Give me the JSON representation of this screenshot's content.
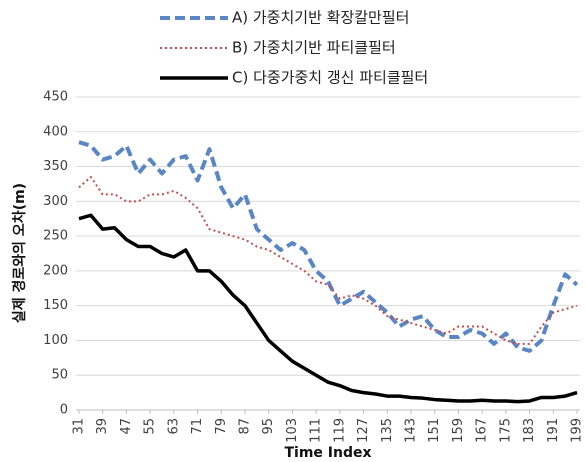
{
  "chart_data": {
    "type": "line",
    "xlabel": "Time Index",
    "ylabel": "실제 경로와의 오차(m)",
    "x": [
      31,
      35,
      39,
      43,
      47,
      51,
      55,
      59,
      63,
      67,
      71,
      75,
      79,
      83,
      87,
      91,
      95,
      99,
      103,
      107,
      111,
      115,
      119,
      123,
      127,
      131,
      135,
      139,
      143,
      147,
      151,
      155,
      159,
      163,
      167,
      171,
      175,
      179,
      183,
      187,
      191,
      195,
      199
    ],
    "series": [
      {
        "name": "A) 가중치기반 확장칼만필터",
        "color": "#5b86c5",
        "dash": "dashed",
        "values": [
          385,
          380,
          360,
          365,
          380,
          340,
          360,
          340,
          360,
          365,
          330,
          375,
          320,
          290,
          310,
          260,
          245,
          230,
          240,
          230,
          200,
          185,
          150,
          160,
          170,
          155,
          140,
          120,
          130,
          135,
          115,
          105,
          105,
          115,
          110,
          95,
          110,
          90,
          85,
          100,
          150,
          195,
          180
        ]
      },
      {
        "name": "B) 가중치기반 파티클필터",
        "color": "#c0504d",
        "dash": "dotted",
        "values": [
          320,
          335,
          310,
          310,
          300,
          300,
          310,
          310,
          315,
          305,
          290,
          260,
          255,
          250,
          245,
          235,
          230,
          220,
          210,
          200,
          185,
          180,
          160,
          165,
          160,
          150,
          135,
          130,
          125,
          120,
          115,
          110,
          120,
          120,
          120,
          110,
          100,
          95,
          95,
          120,
          140,
          145,
          150
        ]
      },
      {
        "name": "C) 다중가중치 갱신 파티클필터",
        "color": "#000000",
        "dash": "solid",
        "values": [
          275,
          280,
          260,
          262,
          245,
          235,
          235,
          225,
          220,
          230,
          200,
          200,
          185,
          165,
          150,
          125,
          100,
          85,
          70,
          60,
          50,
          40,
          35,
          28,
          25,
          23,
          20,
          20,
          18,
          17,
          15,
          14,
          13,
          13,
          14,
          13,
          13,
          12,
          13,
          18,
          18,
          20,
          25
        ]
      }
    ],
    "xlim": [
      30,
      200
    ],
    "xticks": [
      31,
      39,
      47,
      55,
      63,
      71,
      79,
      87,
      95,
      103,
      111,
      119,
      127,
      135,
      143,
      151,
      159,
      167,
      175,
      183,
      191,
      199
    ],
    "ylim": [
      0,
      450
    ],
    "yticks": [
      0,
      50,
      100,
      150,
      200,
      250,
      300,
      350,
      400,
      450
    ],
    "grid": true
  }
}
